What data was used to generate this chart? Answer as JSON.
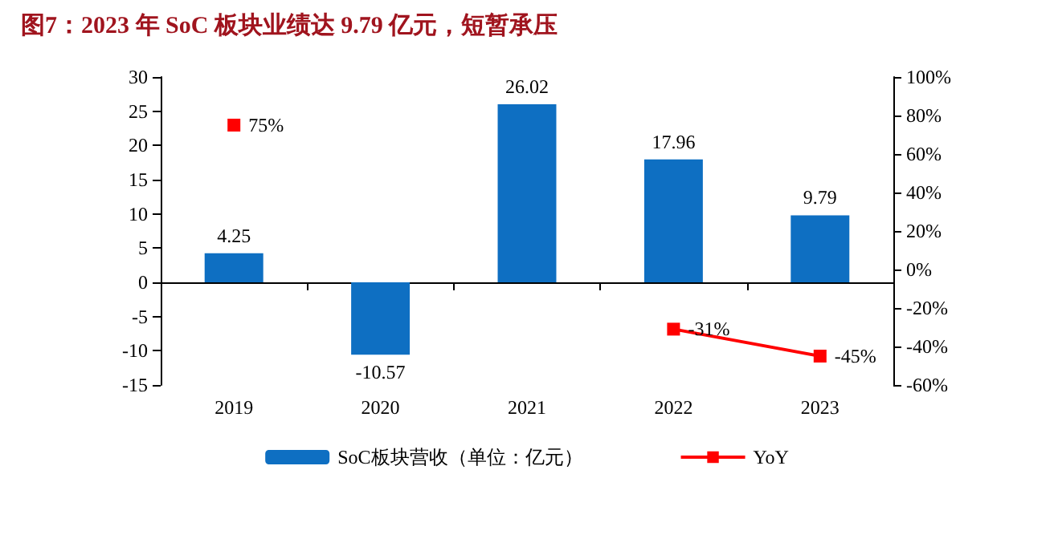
{
  "chart_data": {
    "type": "bar",
    "title": "图7：2023 年 SoC 板块业绩达 9.79 亿元，短暂承压",
    "categories": [
      "2019",
      "2020",
      "2021",
      "2022",
      "2023"
    ],
    "series": [
      {
        "name": "SoC板块营收（单位：亿元）",
        "color": "#0e6fc2",
        "values": [
          4.25,
          -10.57,
          26.02,
          17.96,
          9.79
        ],
        "value_labels": [
          "4.25",
          "-10.57",
          "26.02",
          "17.96",
          "9.79"
        ]
      },
      {
        "name": "YoY",
        "type": "line",
        "axis": "y2",
        "color": "#ff0000",
        "values": [
          75,
          null,
          null,
          -31,
          -45
        ],
        "value_labels": [
          "75%",
          null,
          null,
          "-31%",
          "-45%"
        ]
      }
    ],
    "ylim": [
      -15,
      30
    ],
    "yticks": [
      -15,
      -10,
      -5,
      0,
      5,
      10,
      15,
      20,
      25,
      30
    ],
    "y2lim": [
      -60,
      100
    ],
    "y2ticks": [
      {
        "value": -60,
        "label": "-60%"
      },
      {
        "value": -40,
        "label": "-40%"
      },
      {
        "value": -20,
        "label": "-20%"
      },
      {
        "value": 0,
        "label": "0%"
      },
      {
        "value": 20,
        "label": "20%"
      },
      {
        "value": 40,
        "label": "40%"
      },
      {
        "value": 60,
        "label": "60%"
      },
      {
        "value": 80,
        "label": "80%"
      },
      {
        "value": 100,
        "label": "100%"
      }
    ],
    "legend": "bottom",
    "marker": "square",
    "line_style": "solid"
  }
}
